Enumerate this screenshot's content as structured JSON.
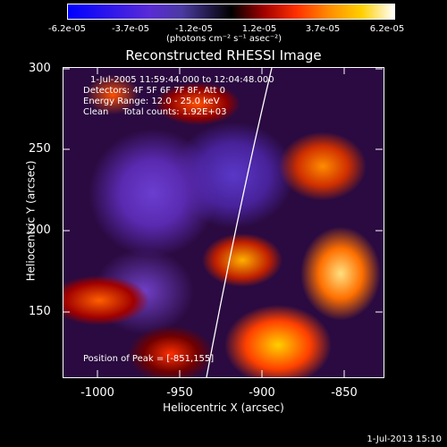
{
  "colorbar": {
    "ticks": [
      "-6.2e-05",
      "-3.7e-05",
      "-1.2e-05",
      "1.2e-05",
      "3.7e-05",
      "6.2e-05"
    ],
    "unit": "(photons cm⁻² s⁻¹ asec⁻²)",
    "colors": [
      "#0000ff",
      "#5a2bd6",
      "#000000",
      "#ff3000",
      "#ffd000",
      "#ffffff"
    ]
  },
  "title": "Reconstructed RHESSI Image",
  "annotations": {
    "line1": "1-Jul-2005 11:59:44.000 to 12:04:48.000",
    "line2": "Detectors: 4F 5F 6F 7F 8F, Att 0",
    "line3": "Energy Range: 12.0 - 25.0 keV",
    "line4": "Clean     Total counts: 1.92E+03",
    "peak": "Position of Peak = [-851,155]"
  },
  "chart_data": {
    "type": "heatmap",
    "title": "Reconstructed RHESSI Image",
    "xlabel": "Heliocentric X (arcsec)",
    "ylabel": "Heliocentric Y (arcsec)",
    "xlim": [
      -1020,
      -825
    ],
    "ylim": [
      107,
      300
    ],
    "xticks": [
      "-1000",
      "-950",
      "-900",
      "-850"
    ],
    "yticks": [
      "300",
      "250",
      "200",
      "150"
    ],
    "colorscale_range": [
      -6.2e-05,
      6.2e-05
    ]
  },
  "timestamp": "1-Jul-2013 15:10"
}
